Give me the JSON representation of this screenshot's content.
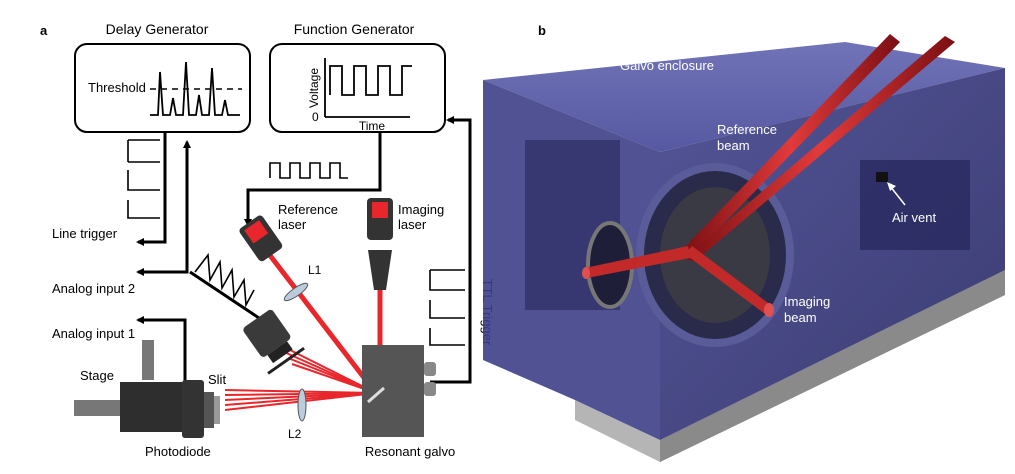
{
  "panel_a": {
    "letter": "a",
    "delay_generator": {
      "title": "Delay Generator",
      "threshold_label": "Threshold"
    },
    "function_generator": {
      "title": "Function Generator",
      "y_label": "Voltage",
      "x_label": "Time",
      "zero_label": "0"
    },
    "labels": {
      "line_trigger": "Line trigger",
      "analog_input_2": "Analog input 2",
      "analog_input_1": "Analog input 1",
      "reference_laser_1": "Reference",
      "reference_laser_2": "laser",
      "imaging_laser_1": "Imaging",
      "imaging_laser_2": "laser",
      "l1": "L1",
      "l2": "L2",
      "ttl_trigger": "TTL Trigger",
      "stage": "Stage",
      "slit": "Slit",
      "photodiode": "Photodiode",
      "resonant_galvo": "Resonant galvo"
    }
  },
  "panel_b": {
    "letter": "b",
    "labels": {
      "galvo_enclosure": "Galvo enclosure",
      "reference_beam_1": "Reference",
      "reference_beam_2": "beam",
      "air_vent": "Air vent",
      "imaging_beam_1": "Imaging",
      "imaging_beam_2": "beam"
    }
  },
  "colors": {
    "laser_red": "#e8262b",
    "enclosure_blue": "#2b2d78",
    "dark_gray": "#3a3a3a"
  }
}
